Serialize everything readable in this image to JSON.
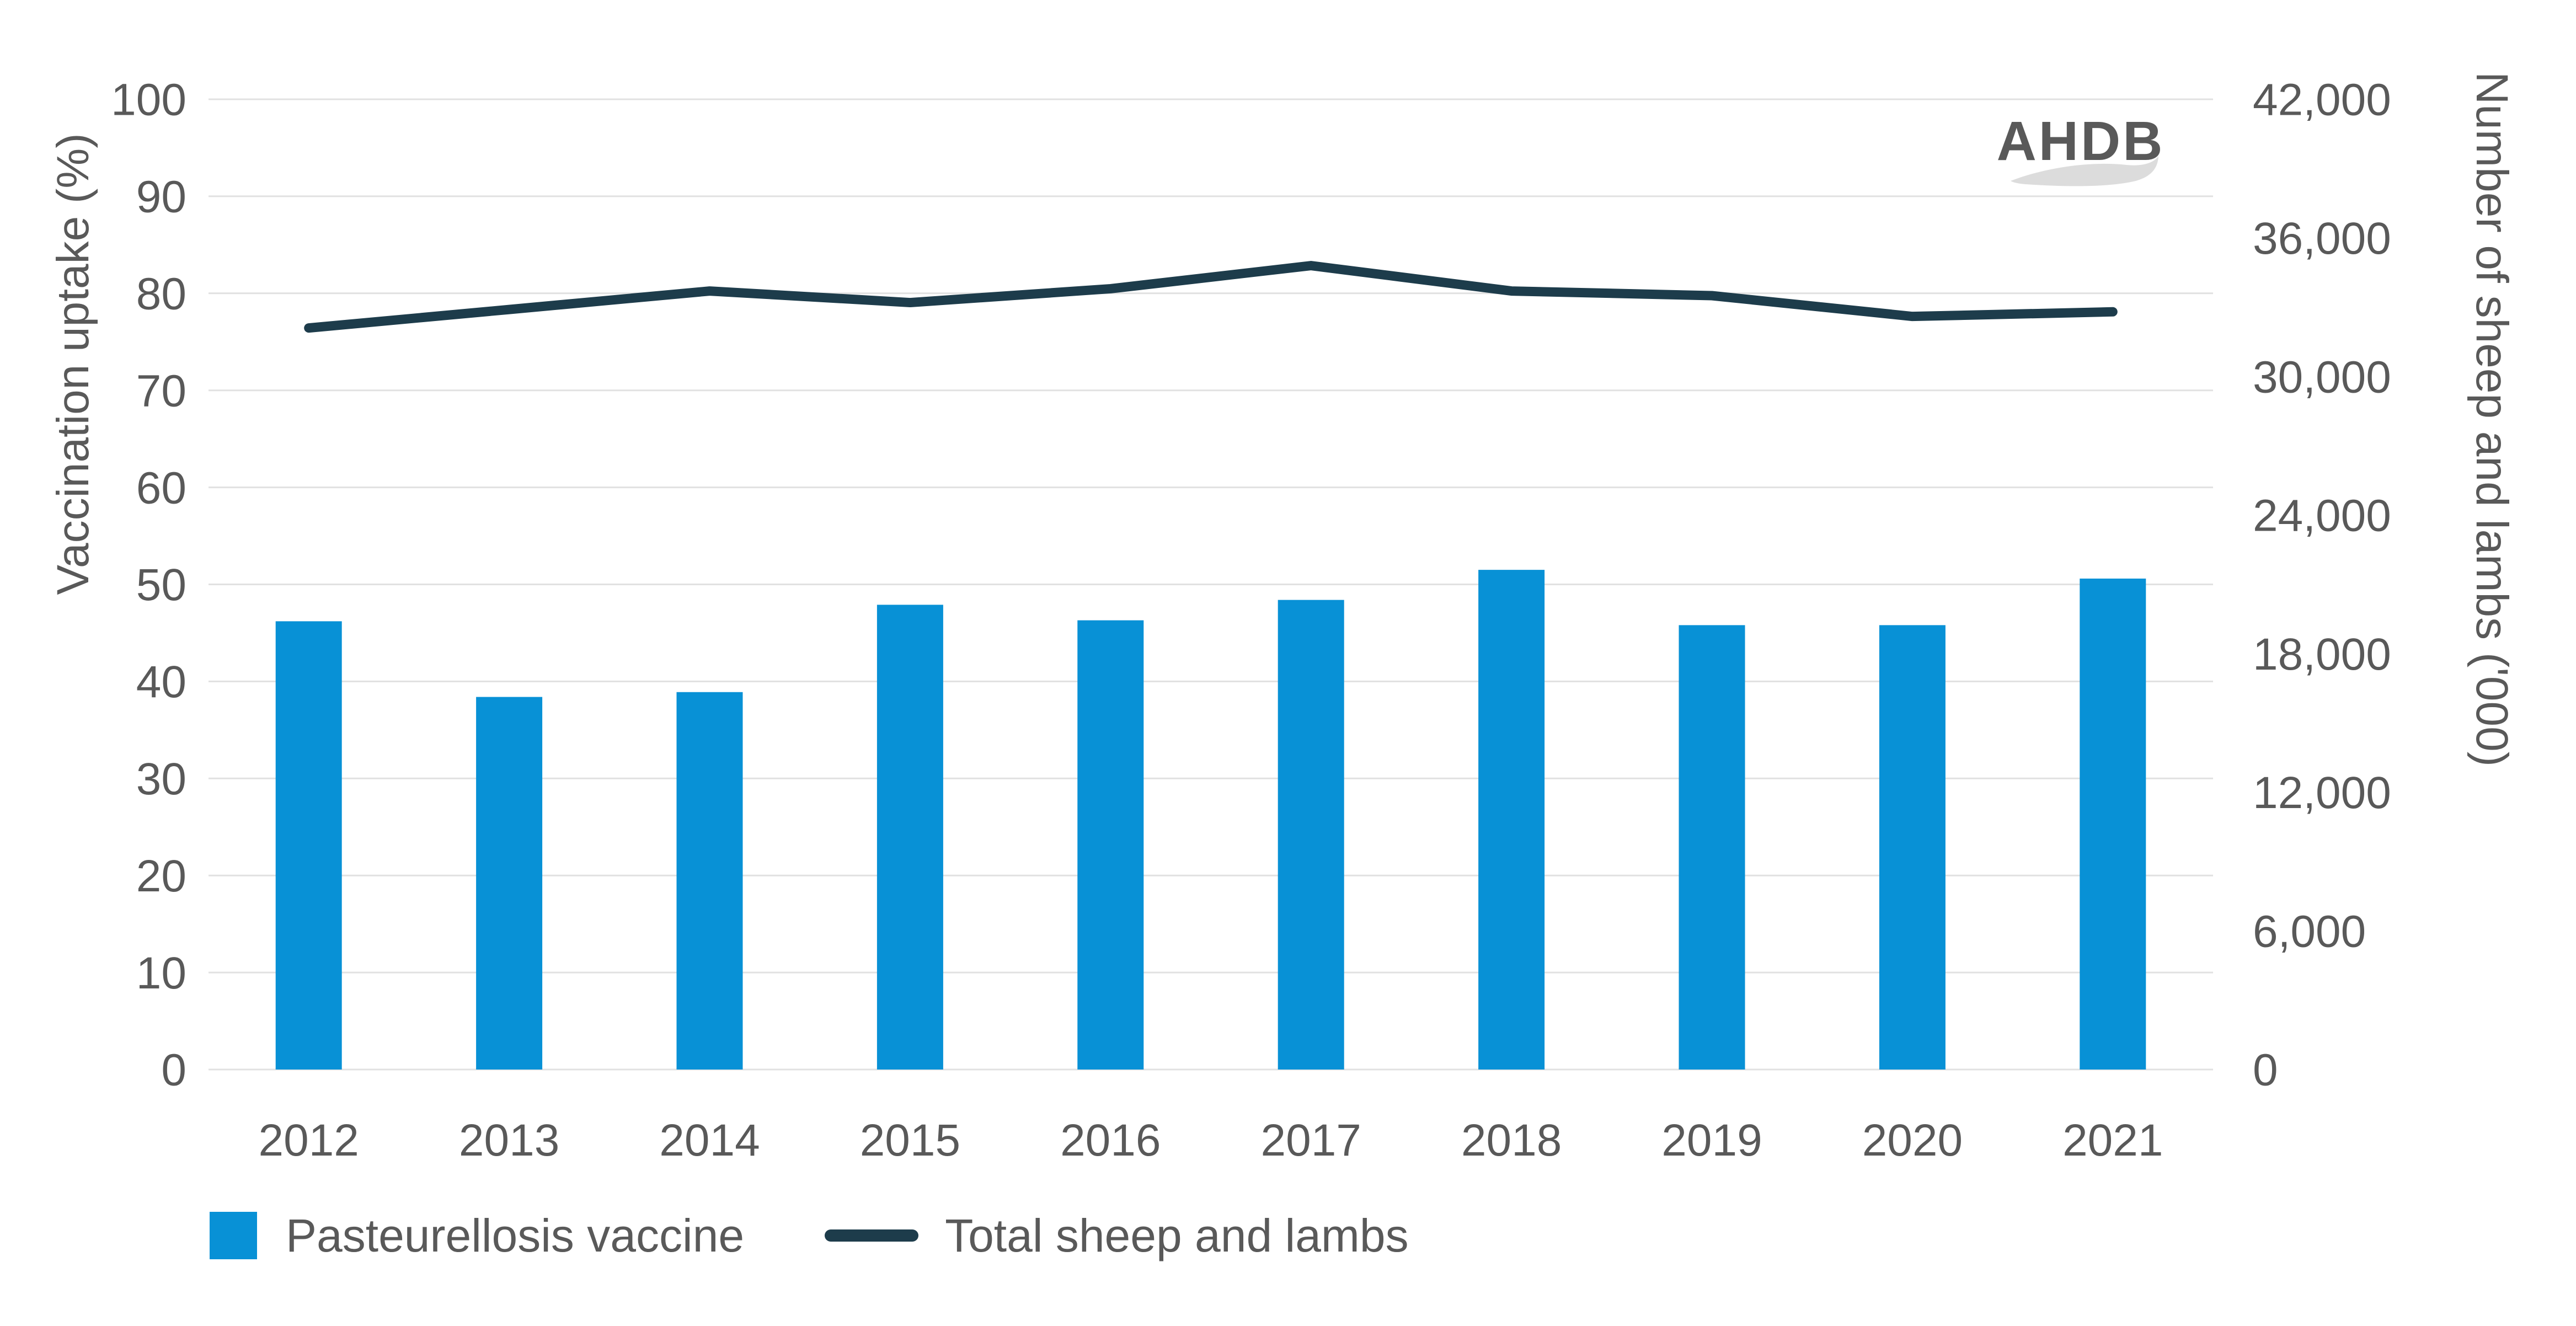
{
  "watermark": "AHDB",
  "colors": {
    "bar": "#0891d6",
    "line": "#1d3c4b",
    "text": "#595959",
    "grid": "#e1e1e1",
    "watermark": "#dcdcdc"
  },
  "chart_data": {
    "type": "combo",
    "categories": [
      "2012",
      "2013",
      "2014",
      "2015",
      "2016",
      "2017",
      "2018",
      "2019",
      "2020",
      "2021"
    ],
    "series": [
      {
        "name": "Pasteurellosis vaccine",
        "type": "bar",
        "axis": "left",
        "values": [
          46.2,
          38.4,
          38.9,
          47.9,
          46.3,
          48.4,
          51.5,
          45.8,
          45.8,
          50.6
        ]
      },
      {
        "name": "Total sheep and lambs",
        "type": "line",
        "axis": "right",
        "values": [
          32100,
          32900,
          33700,
          33200,
          33800,
          34800,
          33700,
          33500,
          32600,
          32800
        ]
      }
    ],
    "left_axis": {
      "title": "Vaccination uptake (%)",
      "min": 0,
      "max": 100,
      "tick_step": 10,
      "tick_labels": [
        "0",
        "10",
        "20",
        "30",
        "40",
        "50",
        "60",
        "70",
        "80",
        "90",
        "100"
      ]
    },
    "right_axis": {
      "title": "Number of sheep and lambs ('000)",
      "min": 0,
      "max": 42000,
      "tick_step": 6000,
      "tick_labels": [
        "0",
        "6,000",
        "12,000",
        "18,000",
        "24,000",
        "30,000",
        "36,000",
        "42,000"
      ]
    },
    "grid": true,
    "legend_position": "bottom"
  },
  "legend": {
    "items": [
      {
        "label": "Pasteurellosis vaccine",
        "marker": "square"
      },
      {
        "label": "Total sheep and lambs",
        "marker": "line"
      }
    ]
  }
}
